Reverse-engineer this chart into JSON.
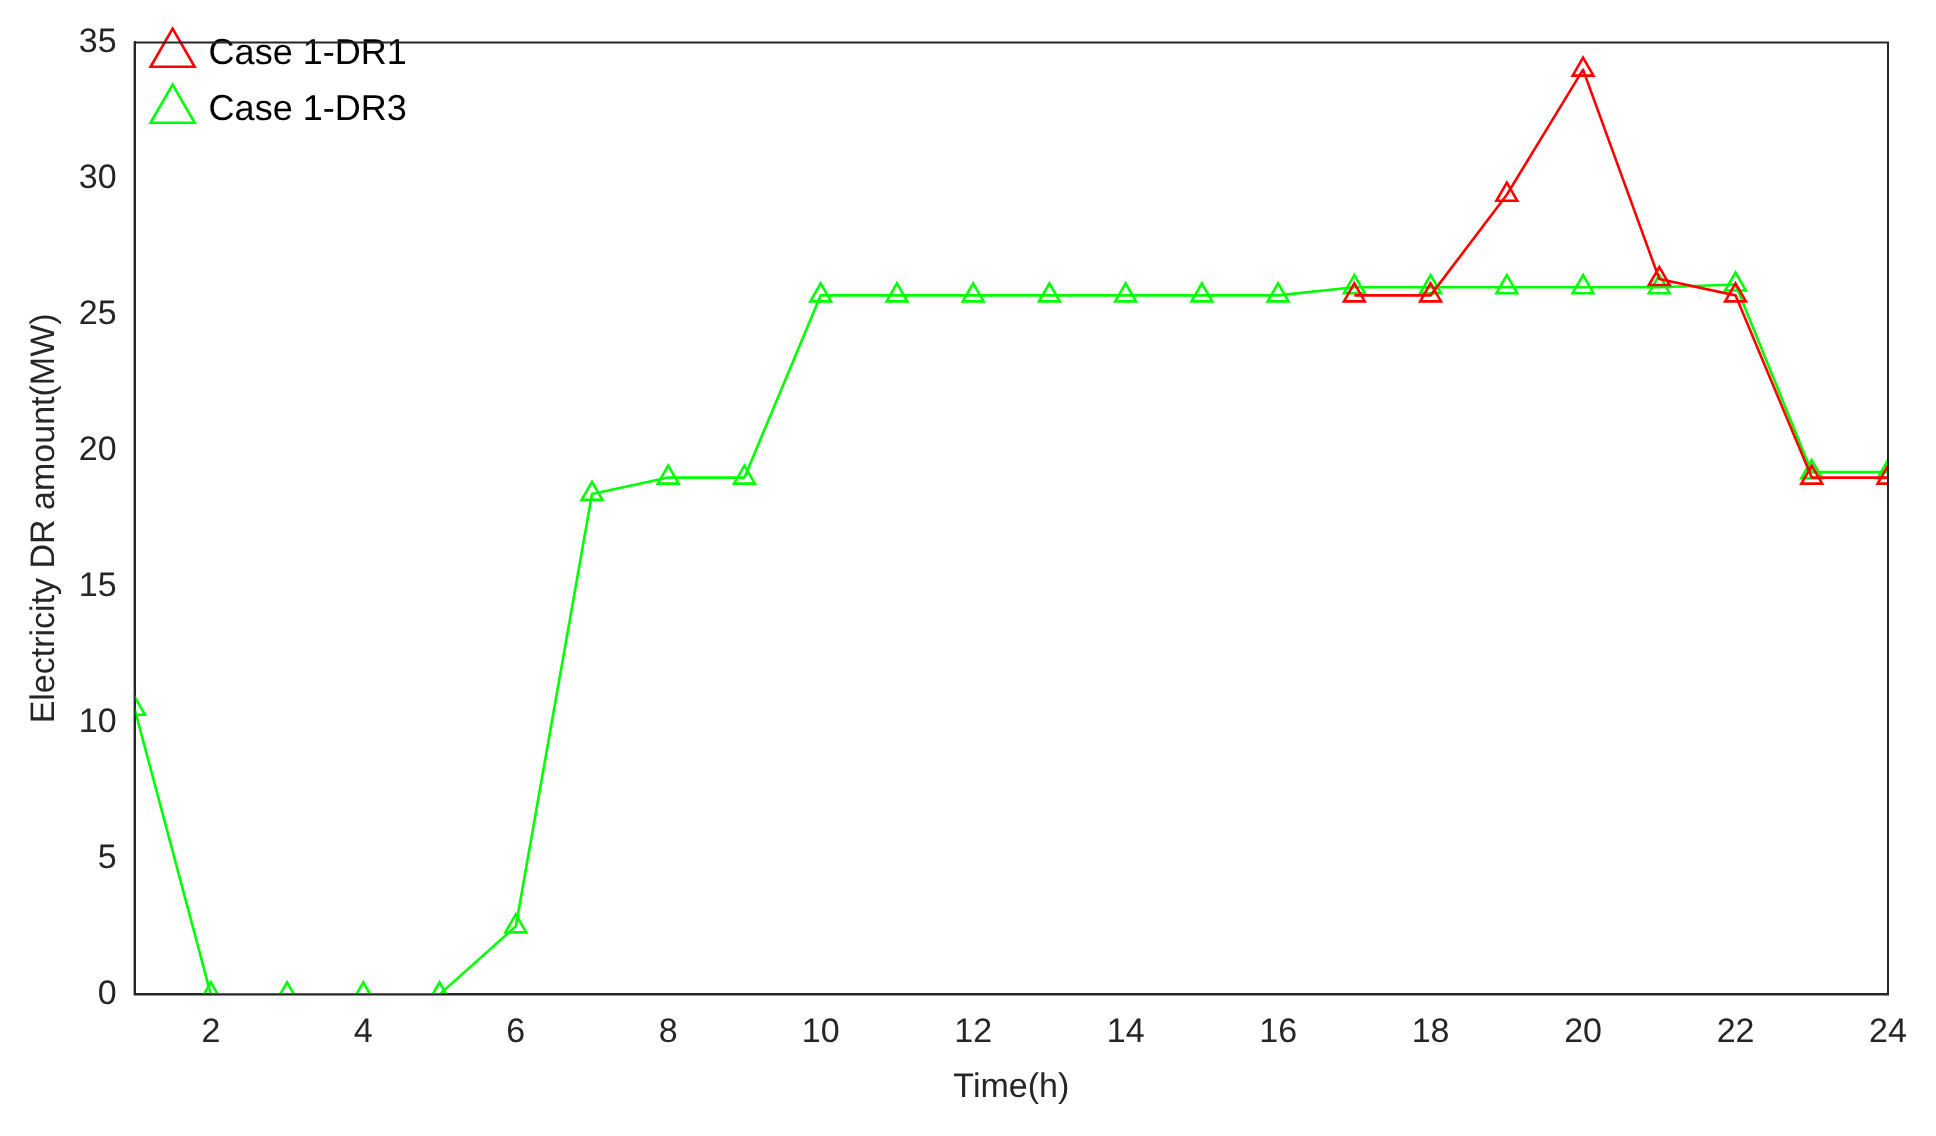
{
  "chart_data": {
    "type": "line",
    "xlabel": "Time(h)",
    "ylabel": "Electricity DR amount(MW)",
    "x": [
      1,
      2,
      3,
      4,
      5,
      6,
      7,
      8,
      9,
      10,
      11,
      12,
      13,
      14,
      15,
      16,
      17,
      18,
      19,
      20,
      21,
      22,
      23,
      24
    ],
    "series": [
      {
        "name": "Case 1-DR1",
        "color": "#ff0000",
        "values": [
          null,
          null,
          null,
          null,
          null,
          null,
          null,
          null,
          null,
          null,
          null,
          null,
          null,
          null,
          null,
          null,
          25.7,
          25.7,
          29.4,
          34,
          26.3,
          25.7,
          19,
          19
        ]
      },
      {
        "name": "Case 1-DR3",
        "color": "#00ff00",
        "values": [
          10.5,
          0,
          0,
          0,
          0,
          2.5,
          18.4,
          19,
          19,
          25.7,
          25.7,
          25.7,
          25.7,
          25.7,
          25.7,
          25.7,
          26,
          26,
          26,
          26,
          26,
          26.1,
          19.2,
          19.2
        ]
      }
    ],
    "xlim": [
      1,
      24
    ],
    "xticks": [
      2,
      4,
      6,
      8,
      10,
      12,
      14,
      16,
      18,
      20,
      22,
      24
    ],
    "ylim": [
      0,
      35
    ],
    "yticks": [
      0,
      5,
      10,
      15,
      20,
      25,
      30,
      35
    ],
    "legend": "top left",
    "marker": "triangle",
    "line_style": "solid"
  }
}
